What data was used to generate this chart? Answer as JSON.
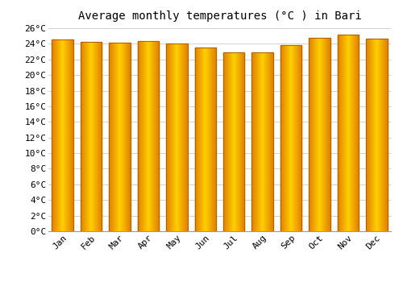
{
  "title": "Average monthly temperatures (°C ) in Bari",
  "months": [
    "Jan",
    "Feb",
    "Mar",
    "Apr",
    "May",
    "Jun",
    "Jul",
    "Aug",
    "Sep",
    "Oct",
    "Nov",
    "Dec"
  ],
  "values": [
    24.6,
    24.2,
    24.1,
    24.4,
    24.0,
    23.5,
    22.9,
    22.9,
    23.8,
    24.8,
    25.2,
    24.7
  ],
  "bar_color_center": "#FFD000",
  "bar_color_edge": "#E08000",
  "bar_edge_color": "#B06000",
  "ylim": [
    0,
    26
  ],
  "ytick_step": 2,
  "background_color": "#FFFFFF",
  "plot_bg_color": "#FFFFFF",
  "grid_color": "#CCCCCC",
  "title_fontsize": 10,
  "tick_fontsize": 8,
  "font_family": "monospace"
}
